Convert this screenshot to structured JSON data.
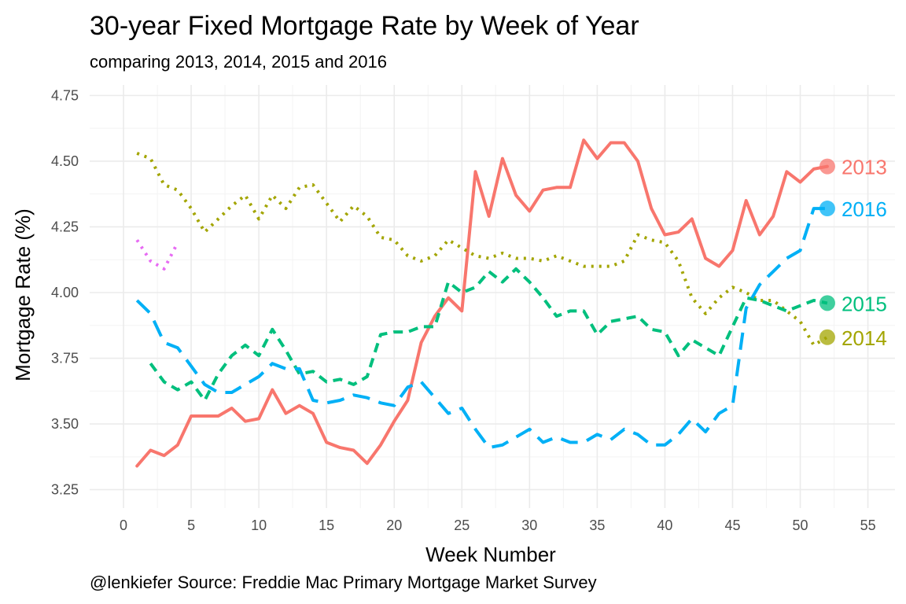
{
  "chart_data": {
    "type": "line",
    "title": "30-year Fixed Mortgage Rate by Week of Year",
    "subtitle": "comparing 2013, 2014, 2015 and 2016",
    "xlabel": "Week Number",
    "ylabel": "Mortgage Rate (%)",
    "caption": "@lenkiefer Source: Freddie Mac Primary Mortgage Market Survey",
    "xlim": [
      -2.5,
      57
    ],
    "ylim": [
      3.18,
      4.79
    ],
    "x_ticks": [
      0,
      5,
      10,
      15,
      20,
      25,
      30,
      35,
      40,
      45,
      50,
      55
    ],
    "y_ticks": [
      3.25,
      3.5,
      3.75,
      4.0,
      4.25,
      4.5,
      4.75
    ],
    "y_tick_labels": [
      "3.25",
      "3.50",
      "3.75",
      "4.00",
      "4.25",
      "4.50",
      "4.75"
    ],
    "grid": true,
    "legend": "end-of-line labels",
    "series": [
      {
        "name": "2013",
        "color": "#F8766D",
        "dash": "solid",
        "x": [
          1,
          2,
          3,
          4,
          5,
          6,
          7,
          8,
          9,
          10,
          11,
          12,
          13,
          14,
          15,
          16,
          17,
          18,
          19,
          20,
          21,
          22,
          23,
          24,
          25,
          26,
          27,
          28,
          29,
          30,
          31,
          32,
          33,
          34,
          35,
          36,
          37,
          38,
          39,
          40,
          41,
          42,
          43,
          44,
          45,
          46,
          47,
          48,
          49,
          50,
          51,
          52
        ],
        "y": [
          3.34,
          3.4,
          3.38,
          3.42,
          3.53,
          3.53,
          3.53,
          3.56,
          3.51,
          3.52,
          3.63,
          3.54,
          3.57,
          3.54,
          3.43,
          3.41,
          3.4,
          3.35,
          3.42,
          3.51,
          3.59,
          3.81,
          3.91,
          3.98,
          3.93,
          4.46,
          4.29,
          4.51,
          4.37,
          4.31,
          4.39,
          4.4,
          4.4,
          4.58,
          4.51,
          4.57,
          4.57,
          4.5,
          4.32,
          4.22,
          4.23,
          4.28,
          4.13,
          4.1,
          4.16,
          4.35,
          4.22,
          4.29,
          4.46,
          4.42,
          4.47,
          4.48
        ]
      },
      {
        "name": "2014",
        "color": "#A3A500",
        "dash": "dotted",
        "x": [
          1,
          2,
          3,
          4,
          5,
          6,
          7,
          8,
          9,
          10,
          11,
          12,
          13,
          14,
          15,
          16,
          17,
          18,
          19,
          20,
          21,
          22,
          23,
          24,
          25,
          26,
          27,
          28,
          29,
          30,
          31,
          32,
          33,
          34,
          35,
          36,
          37,
          38,
          39,
          40,
          41,
          42,
          43,
          44,
          45,
          46,
          47,
          48,
          49,
          50,
          51,
          52
        ],
        "y": [
          4.53,
          4.51,
          4.41,
          4.39,
          4.32,
          4.23,
          4.28,
          4.33,
          4.37,
          4.28,
          4.37,
          4.32,
          4.4,
          4.41,
          4.34,
          4.27,
          4.33,
          4.29,
          4.21,
          4.2,
          4.14,
          4.12,
          4.14,
          4.2,
          4.17,
          4.14,
          4.13,
          4.15,
          4.13,
          4.13,
          4.12,
          4.14,
          4.12,
          4.1,
          4.1,
          4.1,
          4.12,
          4.22,
          4.2,
          4.19,
          4.12,
          3.98,
          3.92,
          3.98,
          4.02,
          4.0,
          3.97,
          3.97,
          3.93,
          3.89,
          3.8,
          3.83
        ]
      },
      {
        "name": "2015",
        "color": "#00BF7D",
        "dash": "dashed",
        "x": [
          2,
          3,
          4,
          5,
          6,
          7,
          8,
          9,
          10,
          11,
          12,
          13,
          14,
          15,
          16,
          17,
          18,
          19,
          20,
          21,
          22,
          23,
          24,
          25,
          26,
          27,
          28,
          29,
          30,
          31,
          32,
          33,
          34,
          35,
          36,
          37,
          38,
          39,
          40,
          41,
          42,
          43,
          44,
          45,
          46,
          47,
          48,
          49,
          50,
          51,
          52
        ],
        "y": [
          3.73,
          3.66,
          3.63,
          3.66,
          3.59,
          3.69,
          3.76,
          3.8,
          3.76,
          3.86,
          3.78,
          3.69,
          3.7,
          3.66,
          3.67,
          3.65,
          3.68,
          3.84,
          3.85,
          3.85,
          3.87,
          3.87,
          4.04,
          4.0,
          4.02,
          4.08,
          4.04,
          4.09,
          4.04,
          3.98,
          3.91,
          3.93,
          3.93,
          3.84,
          3.89,
          3.9,
          3.91,
          3.86,
          3.85,
          3.76,
          3.82,
          3.79,
          3.76,
          3.87,
          3.98,
          3.97,
          3.95,
          3.93,
          3.95,
          3.97,
          3.96
        ]
      },
      {
        "name": "2016",
        "color": "#00B0F6",
        "dash": "longdash",
        "x": [
          1,
          2,
          3,
          4,
          5,
          6,
          7,
          8,
          9,
          10,
          11,
          12,
          13,
          14,
          15,
          16,
          17,
          18,
          19,
          20,
          21,
          22,
          23,
          24,
          25,
          26,
          27,
          28,
          29,
          30,
          31,
          32,
          33,
          34,
          35,
          36,
          37,
          38,
          39,
          40,
          41,
          42,
          43,
          44,
          45,
          46,
          47,
          48,
          49,
          50,
          51,
          52
        ],
        "y": [
          3.97,
          3.92,
          3.81,
          3.79,
          3.72,
          3.65,
          3.62,
          3.62,
          3.65,
          3.68,
          3.73,
          3.71,
          3.71,
          3.59,
          3.58,
          3.59,
          3.61,
          3.6,
          3.58,
          3.57,
          3.64,
          3.66,
          3.6,
          3.54,
          3.56,
          3.48,
          3.41,
          3.42,
          3.45,
          3.48,
          3.43,
          3.45,
          3.43,
          3.43,
          3.46,
          3.44,
          3.48,
          3.46,
          3.42,
          3.42,
          3.46,
          3.52,
          3.47,
          3.54,
          3.57,
          3.94,
          4.03,
          4.08,
          4.13,
          4.16,
          4.32,
          4.32
        ]
      },
      {
        "name": "",
        "color": "#E76BF3",
        "dash": "dotted",
        "x": [
          1,
          2,
          3,
          4
        ],
        "y": [
          4.2,
          4.12,
          4.09,
          4.19
        ]
      }
    ]
  }
}
